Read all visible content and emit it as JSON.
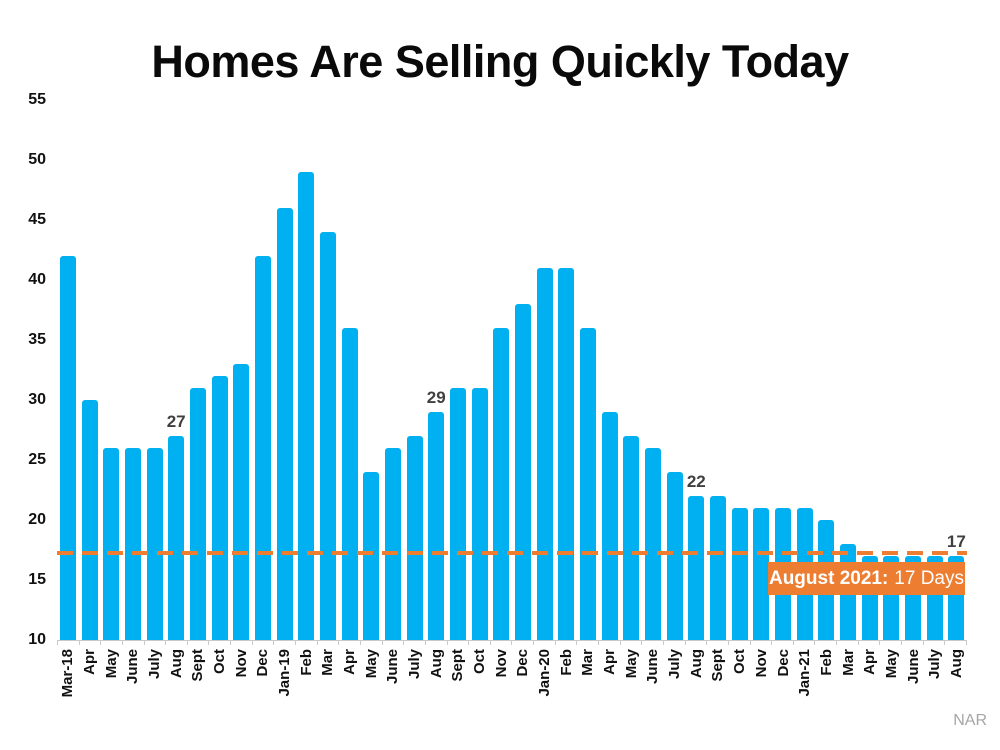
{
  "source": "NAR",
  "callout": {
    "bold": "August 2021:",
    "regular": "17 Days"
  },
  "colors": {
    "bar": "#00B0F0",
    "accent_orange": "#ED7D31",
    "bar_label": "#404040",
    "source_gray": "#A6A6A6"
  },
  "chart_data": {
    "type": "bar",
    "title": "Homes Are Selling Quickly Today",
    "xlabel": "",
    "ylabel": "",
    "ylim": [
      10,
      55
    ],
    "yticks": [
      55,
      50,
      45,
      40,
      35,
      30,
      25,
      20,
      15,
      10
    ],
    "grid": false,
    "legend": "none",
    "bar_color": "#00B0F0",
    "reference_line": {
      "value": 17,
      "style": "dashed",
      "color": "#ED7D31",
      "label": "August 2021: 17 Days"
    },
    "categories": [
      "Mar-18",
      "Apr",
      "May",
      "June",
      "July",
      "Aug",
      "Sept",
      "Oct",
      "Nov",
      "Dec",
      "Jan-19",
      "Feb",
      "Mar",
      "Apr",
      "May",
      "June",
      "July",
      "Aug",
      "Sept",
      "Oct",
      "Nov",
      "Dec",
      "Jan-20",
      "Feb",
      "Mar",
      "Apr",
      "May",
      "June",
      "July",
      "Aug",
      "Sept",
      "Oct",
      "Nov",
      "Dec",
      "Jan-21",
      "Feb",
      "Mar",
      "Apr",
      "May",
      "June",
      "July",
      "Aug"
    ],
    "values": [
      42,
      30,
      26,
      26,
      26,
      27,
      31,
      32,
      33,
      42,
      46,
      49,
      44,
      36,
      24,
      26,
      27,
      29,
      31,
      31,
      36,
      38,
      41,
      41,
      36,
      29,
      27,
      26,
      24,
      22,
      22,
      21,
      21,
      21,
      21,
      20,
      18,
      17,
      17,
      17,
      17,
      17
    ],
    "annotations": [
      {
        "index": 5,
        "category": "Aug-18",
        "text": "27"
      },
      {
        "index": 17,
        "category": "Aug-19",
        "text": "29"
      },
      {
        "index": 29,
        "category": "Aug-20",
        "text": "22"
      },
      {
        "index": 41,
        "category": "Aug-21",
        "text": "17"
      }
    ]
  }
}
